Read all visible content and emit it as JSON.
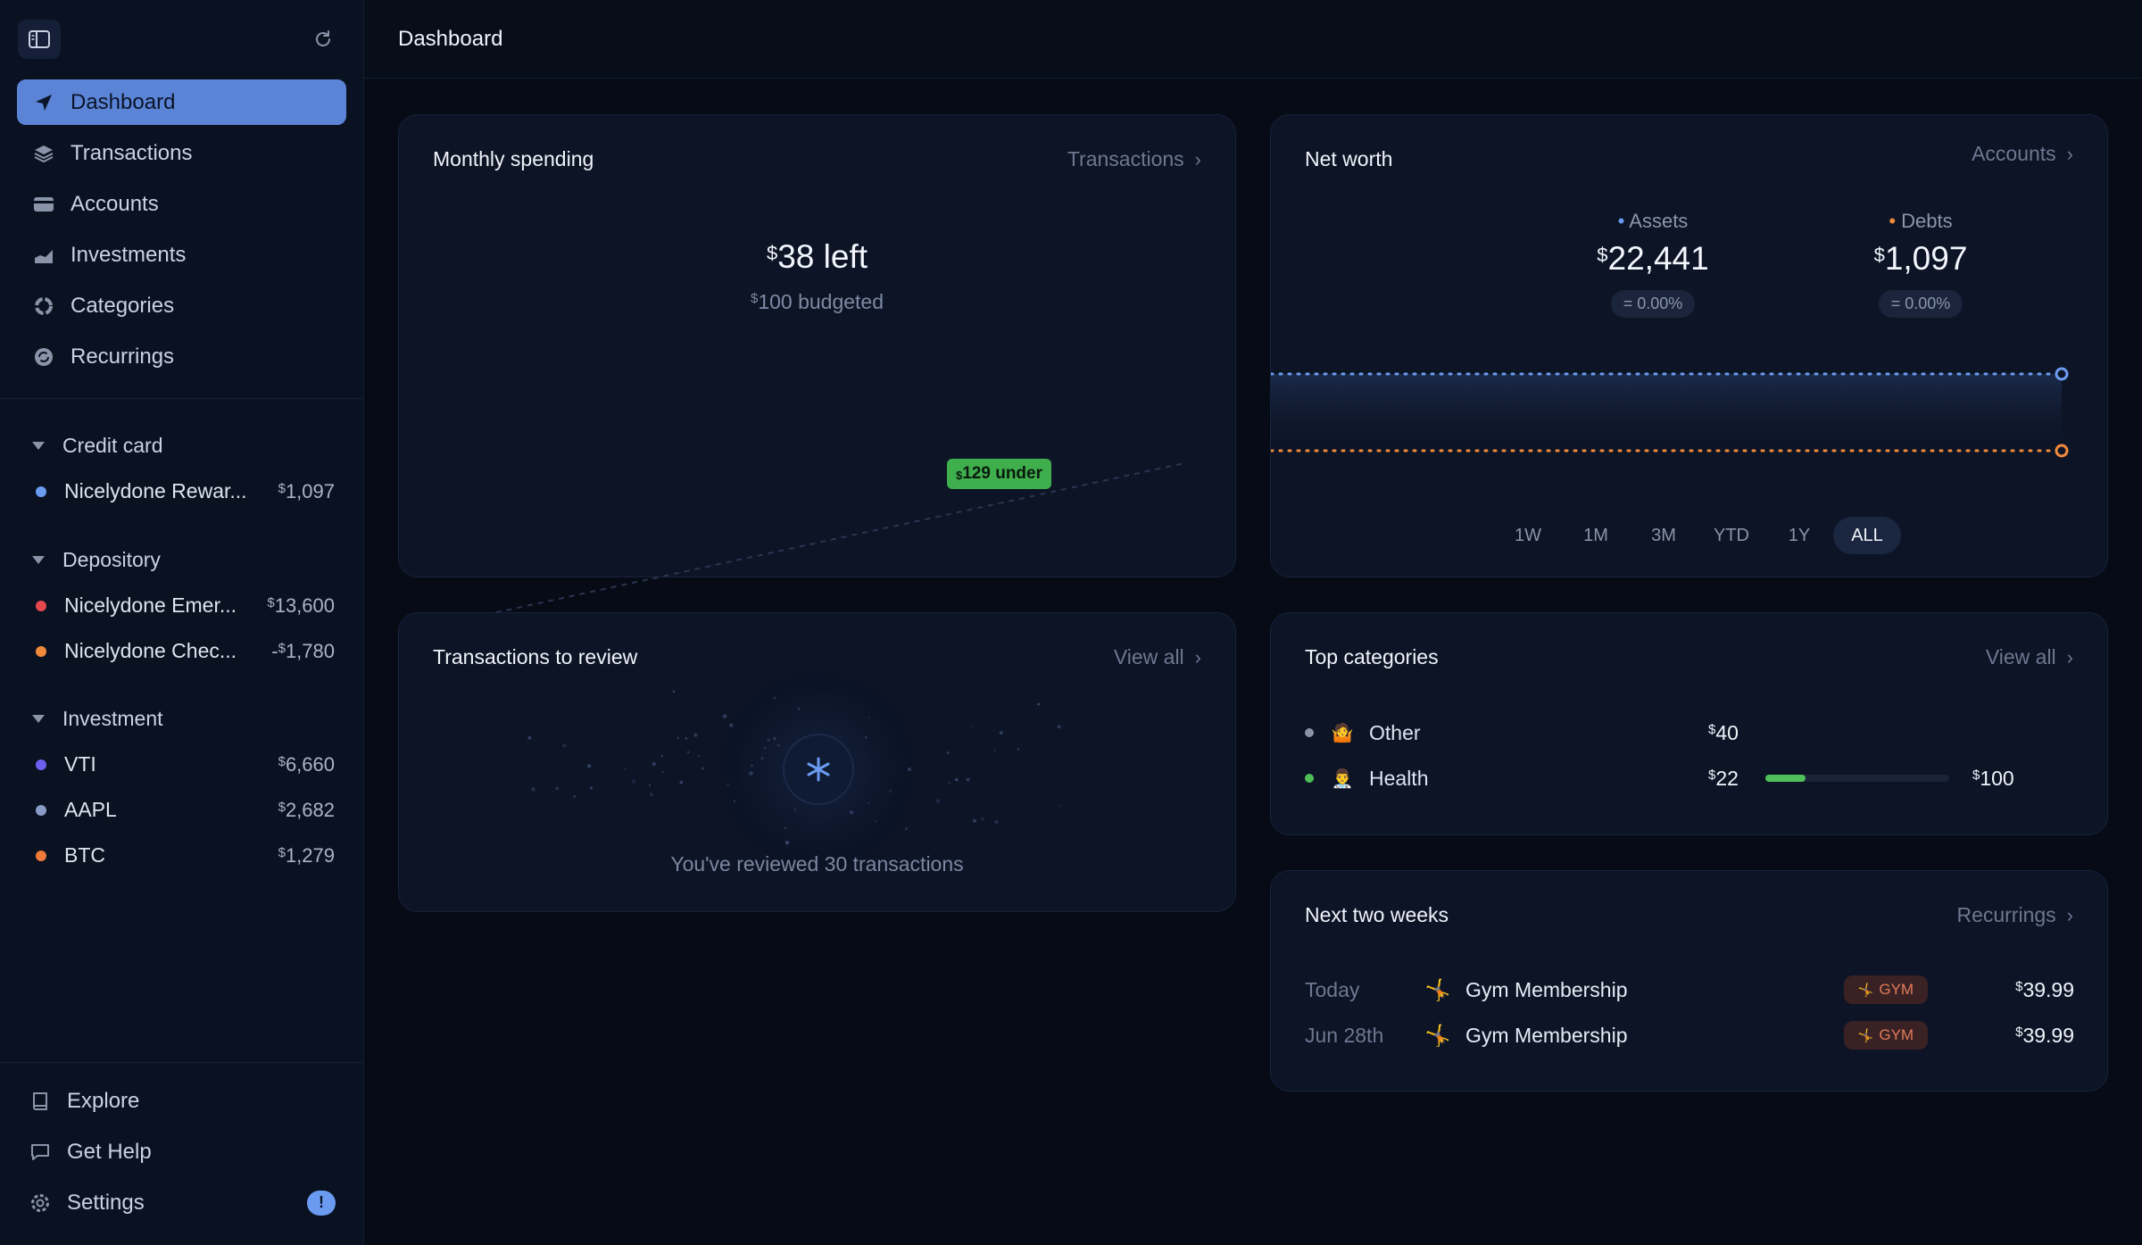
{
  "sidebar": {
    "toggle_icon": "sidebar-toggle-icon",
    "refresh_icon": "refresh-icon",
    "nav": [
      {
        "label": "Dashboard",
        "icon": "navigation-arrow-icon",
        "active": true
      },
      {
        "label": "Transactions",
        "icon": "stack-icon"
      },
      {
        "label": "Accounts",
        "icon": "credit-card-icon"
      },
      {
        "label": "Investments",
        "icon": "chart-area-icon"
      },
      {
        "label": "Categories",
        "icon": "pie-icon"
      },
      {
        "label": "Recurrings",
        "icon": "cycle-icon"
      }
    ],
    "groups": [
      {
        "label": "Credit card",
        "accounts": [
          {
            "name": "Nicelydone Rewar...",
            "sign": "",
            "amount": "1,097",
            "color": "#6b9bf0"
          }
        ]
      },
      {
        "label": "Depository",
        "accounts": [
          {
            "name": "Nicelydone Emer...",
            "sign": "",
            "amount": "13,600",
            "color": "#e5484d"
          },
          {
            "name": "Nicelydone Chec...",
            "sign": "-",
            "amount": "1,780",
            "color": "#f08a3a"
          }
        ]
      },
      {
        "label": "Investment",
        "accounts": [
          {
            "name": "VTI",
            "sign": "",
            "amount": "6,660",
            "color": "#6d5ef0"
          },
          {
            "name": "AAPL",
            "sign": "",
            "amount": "2,682",
            "color": "#8a9bc8"
          },
          {
            "name": "BTC",
            "sign": "",
            "amount": "1,279",
            "color": "#f07a3a"
          }
        ]
      }
    ],
    "bottom": [
      {
        "label": "Explore",
        "icon": "book-icon"
      },
      {
        "label": "Get Help",
        "icon": "chat-bubble-icon"
      },
      {
        "label": "Settings",
        "icon": "gear-icon",
        "badge": "!"
      }
    ]
  },
  "header": {
    "title": "Dashboard"
  },
  "monthly_spending": {
    "title": "Monthly spending",
    "link": "Transactions",
    "left_currency": "$",
    "left_amount": "38 left",
    "budget_currency": "$",
    "budget_amount": "100 budgeted",
    "tooltip_currency": "$",
    "tooltip_amount": "129 under",
    "progress_fraction": 0.62
  },
  "net_worth": {
    "title": "Net worth",
    "link": "Accounts",
    "assets_label": "Assets",
    "assets_currency": "$",
    "assets_value": "22,441",
    "assets_change": "= 0.00%",
    "debts_label": "Debts",
    "debts_currency": "$",
    "debts_value": "1,097",
    "debts_change": "= 0.00%",
    "assets_color": "#6b9bf0",
    "debts_color": "#f08a3a",
    "ranges": [
      "1W",
      "1M",
      "3M",
      "YTD",
      "1Y",
      "ALL"
    ],
    "active_range": "ALL"
  },
  "review": {
    "title": "Transactions to review",
    "link": "View all",
    "message": "You've reviewed 30 transactions",
    "icon": "sparkle-icon"
  },
  "top_categories": {
    "title": "Top categories",
    "link": "View all",
    "rows": [
      {
        "name": "Other",
        "emoji": "🤷",
        "currency": "$",
        "value": "40",
        "dot": "#8a94a8",
        "budget": "",
        "fraction": null
      },
      {
        "name": "Health",
        "emoji": "👨‍⚕️",
        "currency": "$",
        "value": "22",
        "dot": "#4fbf5a",
        "budget_currency": "$",
        "budget": "100",
        "fraction": 0.22
      }
    ]
  },
  "next_two_weeks": {
    "title": "Next two weeks",
    "link": "Recurrings",
    "rows": [
      {
        "date": "Today",
        "emoji": "🤸",
        "name": "Gym Membership",
        "tag": "GYM",
        "tag_emoji": "🤸",
        "currency": "$",
        "amount": "39.99"
      },
      {
        "date": "Jun 28th",
        "emoji": "🤸",
        "name": "Gym Membership",
        "tag": "GYM",
        "tag_emoji": "🤸",
        "currency": "$",
        "amount": "39.99"
      }
    ]
  }
}
